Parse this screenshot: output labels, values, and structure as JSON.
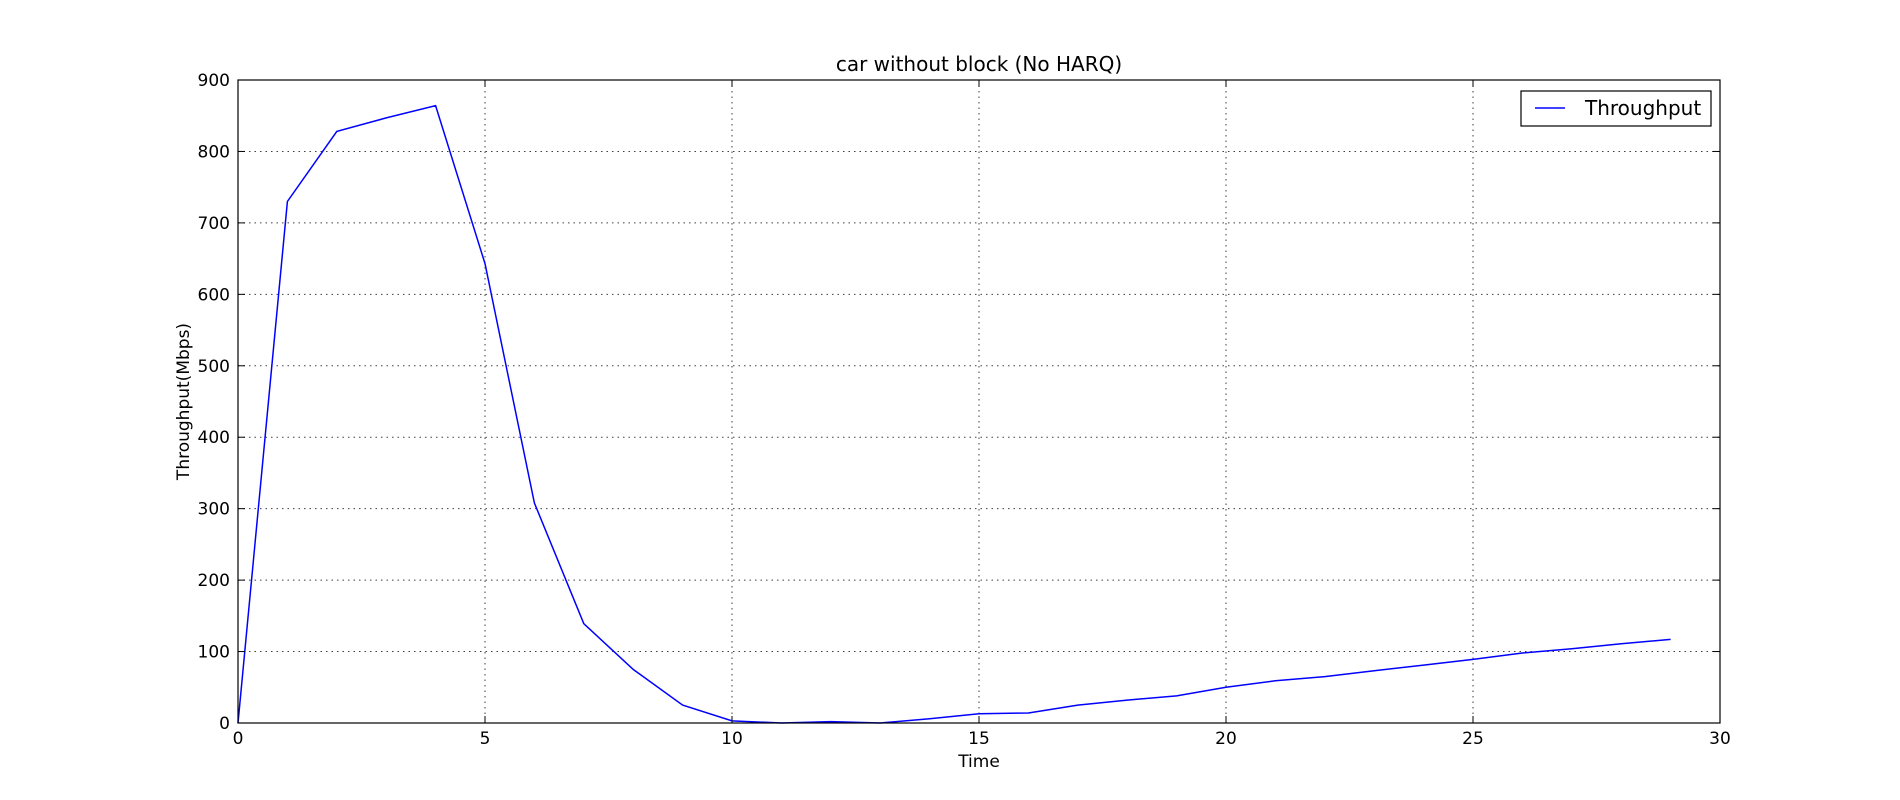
{
  "chart_data": {
    "type": "line",
    "title": "car without block (No HARQ)",
    "xlabel": "Time",
    "ylabel": "Throughput(Mbps)",
    "xlim": [
      0,
      30
    ],
    "ylim": [
      0,
      900
    ],
    "xticks": [
      0,
      5,
      10,
      15,
      20,
      25,
      30
    ],
    "yticks": [
      0,
      100,
      200,
      300,
      400,
      500,
      600,
      700,
      800,
      900
    ],
    "grid": true,
    "legend_position": "top-right",
    "series": [
      {
        "name": "Throughput",
        "color": "#0000ff",
        "x": [
          0,
          1,
          2,
          3,
          4,
          5,
          6,
          7,
          8,
          9,
          10,
          11,
          12,
          13,
          14,
          15,
          16,
          17,
          18,
          19,
          20,
          21,
          22,
          23,
          24,
          25,
          26,
          27,
          28,
          29
        ],
        "y": [
          0,
          730,
          828,
          847,
          864,
          643,
          308,
          139,
          75,
          25,
          3,
          0,
          2,
          0,
          6,
          13,
          14,
          25,
          32,
          38,
          50,
          59,
          65,
          73,
          81,
          89,
          98,
          104,
          111,
          117
        ]
      }
    ]
  }
}
